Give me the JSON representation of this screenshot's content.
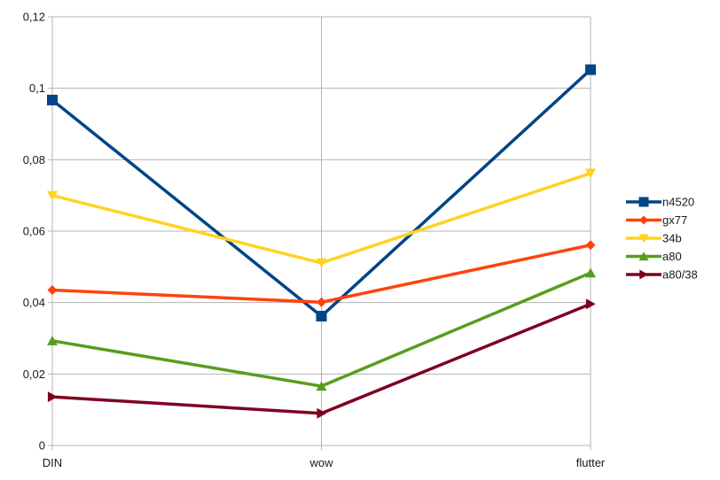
{
  "chart_data": {
    "type": "line",
    "categories": [
      "DIN",
      "wow",
      "flutter"
    ],
    "ylim": [
      0,
      0.12
    ],
    "yticks": [
      0,
      0.02,
      0.04,
      0.06,
      0.08,
      0.1,
      0.12
    ],
    "ytick_labels": [
      "0",
      "0,02",
      "0,04",
      "0,06",
      "0,08",
      "0,1",
      "0,12"
    ],
    "grid": true,
    "legend_position": "right",
    "series": [
      {
        "name": "n4520",
        "values": [
          0.0967,
          0.0362,
          0.1052
        ],
        "color": "#004586",
        "marker": "square"
      },
      {
        "name": "gx77",
        "values": [
          0.0435,
          0.0401,
          0.0561
        ],
        "color": "#ff420e",
        "marker": "diamond"
      },
      {
        "name": "34b",
        "values": [
          0.07,
          0.0511,
          0.0762
        ],
        "color": "#ffd320",
        "marker": "triangle-down"
      },
      {
        "name": "a80",
        "values": [
          0.0293,
          0.0166,
          0.0483
        ],
        "color": "#579d1c",
        "marker": "triangle-up"
      },
      {
        "name": "a80/38",
        "values": [
          0.0136,
          0.009,
          0.0396
        ],
        "color": "#7e0021",
        "marker": "triangle-right"
      }
    ]
  }
}
